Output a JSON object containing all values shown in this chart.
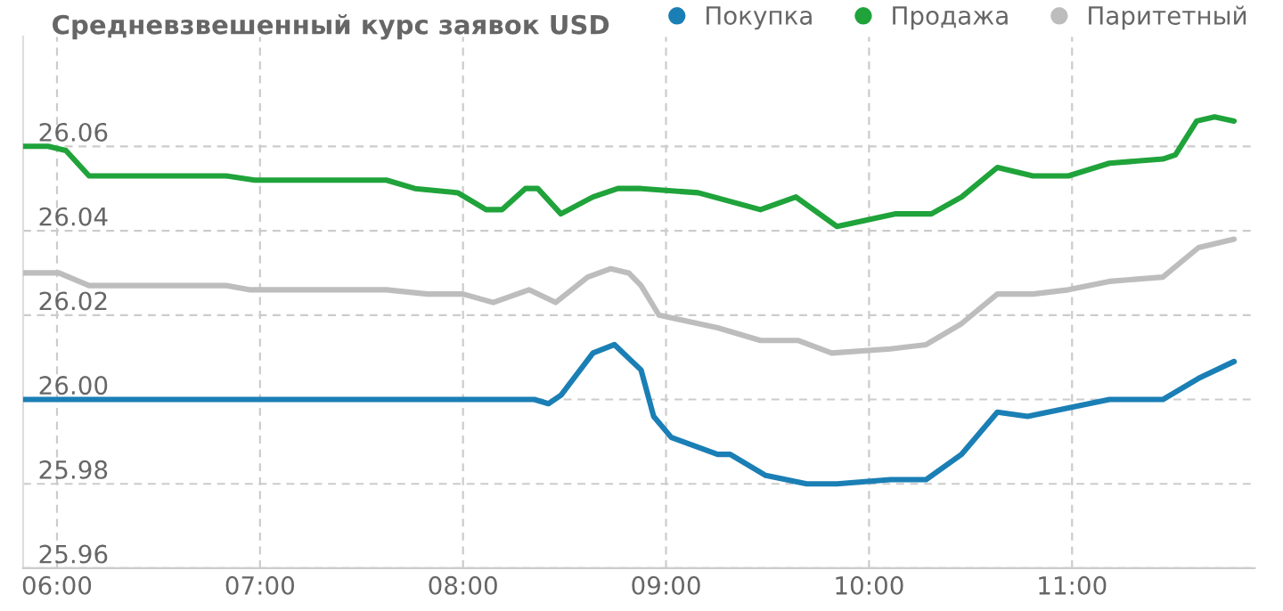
{
  "chart_data": {
    "type": "line",
    "title": "Средневзвешенный курс заявок USD",
    "xlim": [
      5.833,
      11.9
    ],
    "ylim": [
      25.96,
      26.086
    ],
    "xticks": [
      {
        "value": 6,
        "label": "06:00"
      },
      {
        "value": 7,
        "label": "07:00"
      },
      {
        "value": 8,
        "label": "08:00"
      },
      {
        "value": 9,
        "label": "09:00"
      },
      {
        "value": 10,
        "label": "10:00"
      },
      {
        "value": 11,
        "label": "11:00"
      }
    ],
    "yticks": [
      {
        "value": 25.96,
        "label": "25.96"
      },
      {
        "value": 25.98,
        "label": "25.98"
      },
      {
        "value": 26.0,
        "label": "26.00"
      },
      {
        "value": 26.02,
        "label": "26.02"
      },
      {
        "value": 26.04,
        "label": "26.04"
      },
      {
        "value": 26.06,
        "label": "26.06"
      }
    ],
    "grid": true,
    "legend": "top right",
    "marker": "none",
    "line_style": "solid",
    "series": [
      {
        "name": "Покупка",
        "color": "#1a7fb5",
        "x": [
          5.833,
          8.351,
          8.421,
          8.482,
          8.64,
          8.746,
          8.833,
          8.877,
          8.939,
          9.026,
          9.254,
          9.316,
          9.491,
          9.693,
          9.842,
          10.105,
          10.281,
          10.456,
          10.632,
          10.781,
          10.982,
          11.184,
          11.447,
          11.623,
          11.798
        ],
        "values": [
          26.0,
          26.0,
          25.999,
          26.001,
          26.011,
          26.013,
          26.009,
          26.007,
          25.996,
          25.991,
          25.987,
          25.987,
          25.982,
          25.98,
          25.98,
          25.981,
          25.981,
          25.987,
          25.997,
          25.996,
          25.998,
          26.0,
          26.0,
          26.005,
          26.009
        ]
      },
      {
        "name": "Продажа",
        "color": "#1fa33a",
        "x": [
          5.833,
          5.956,
          6.044,
          6.158,
          6.272,
          6.833,
          6.974,
          7.535,
          7.623,
          7.763,
          7.974,
          8.114,
          8.193,
          8.307,
          8.368,
          8.482,
          8.64,
          8.763,
          8.877,
          9.158,
          9.465,
          9.64,
          9.842,
          10.132,
          10.307,
          10.456,
          10.632,
          10.807,
          10.982,
          11.184,
          11.447,
          11.509,
          11.614,
          11.702,
          11.798
        ],
        "values": [
          26.06,
          26.06,
          26.059,
          26.053,
          26.053,
          26.053,
          26.052,
          26.052,
          26.052,
          26.05,
          26.049,
          26.045,
          26.045,
          26.05,
          26.05,
          26.044,
          26.048,
          26.05,
          26.05,
          26.049,
          26.045,
          26.048,
          26.041,
          26.044,
          26.044,
          26.048,
          26.055,
          26.053,
          26.053,
          26.056,
          26.057,
          26.058,
          26.066,
          26.067,
          26.066
        ]
      },
      {
        "name": "Паритетный",
        "color": "#bdbdbd",
        "x": [
          5.833,
          6.009,
          6.158,
          6.833,
          6.947,
          7.535,
          7.623,
          7.825,
          8.0,
          8.149,
          8.325,
          8.456,
          8.614,
          8.728,
          8.816,
          8.877,
          8.965,
          9.254,
          9.465,
          9.649,
          9.816,
          10.105,
          10.281,
          10.456,
          10.632,
          10.807,
          10.982,
          11.184,
          11.447,
          11.623,
          11.798
        ],
        "values": [
          26.03,
          26.03,
          26.027,
          26.027,
          26.026,
          26.026,
          26.026,
          26.025,
          26.025,
          26.023,
          26.026,
          26.023,
          26.029,
          26.031,
          26.03,
          26.027,
          26.02,
          26.017,
          26.014,
          26.014,
          26.011,
          26.012,
          26.013,
          26.018,
          26.025,
          26.025,
          26.026,
          26.028,
          26.029,
          26.036,
          26.038
        ]
      }
    ]
  }
}
